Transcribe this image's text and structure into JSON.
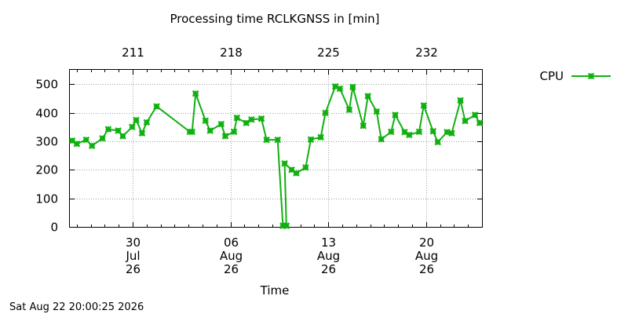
{
  "chart_data": {
    "type": "line",
    "title": "Processing time RCLKGNSS in [min]",
    "xlabel": "Time",
    "ylabel": "",
    "ylim": [
      0,
      550
    ],
    "yticks": [
      0,
      100,
      200,
      300,
      400,
      500
    ],
    "xlim": [
      "2026-07-25T12:00",
      "2026-08-24T00:00"
    ],
    "x_ticks": [
      {
        "x": "2026-07-30",
        "lines": [
          "30",
          "Jul",
          "26"
        ]
      },
      {
        "x": "2026-08-06",
        "lines": [
          "06",
          "Aug",
          "26"
        ]
      },
      {
        "x": "2026-08-13",
        "lines": [
          "13",
          "Aug",
          "26"
        ]
      },
      {
        "x": "2026-08-20",
        "lines": [
          "20",
          "Aug",
          "26"
        ]
      }
    ],
    "x2_ticks": [
      {
        "x": "2026-07-30",
        "label": "211"
      },
      {
        "x": "2026-08-06",
        "label": "218"
      },
      {
        "x": "2026-08-13",
        "label": "225"
      },
      {
        "x": "2026-08-20",
        "label": "232"
      }
    ],
    "grid": true,
    "legend_position": "right",
    "color": "#10b010",
    "series": [
      {
        "name": "CPU",
        "points": [
          [
            "2026-07-25T16:00",
            302
          ],
          [
            "2026-07-26T00:00",
            291
          ],
          [
            "2026-07-26T16:00",
            305
          ],
          [
            "2026-07-27T02:00",
            284
          ],
          [
            "2026-07-27T20:00",
            310
          ],
          [
            "2026-07-28T06:00",
            342
          ],
          [
            "2026-07-28T23:00",
            337
          ],
          [
            "2026-07-29T07:00",
            318
          ],
          [
            "2026-07-29T23:00",
            350
          ],
          [
            "2026-07-30T06:00",
            374
          ],
          [
            "2026-07-30T16:00",
            328
          ],
          [
            "2026-07-31T00:00",
            366
          ],
          [
            "2026-07-31T17:00",
            422
          ],
          [
            "2026-08-03T02:00",
            333
          ],
          [
            "2026-08-03T06:00",
            333
          ],
          [
            "2026-08-03T12:00",
            467
          ],
          [
            "2026-08-04T05:00",
            372
          ],
          [
            "2026-08-04T13:00",
            337
          ],
          [
            "2026-08-05T08:00",
            360
          ],
          [
            "2026-08-05T15:00",
            318
          ],
          [
            "2026-08-06T06:00",
            333
          ],
          [
            "2026-08-06T11:00",
            382
          ],
          [
            "2026-08-07T03:00",
            364
          ],
          [
            "2026-08-07T12:00",
            376
          ],
          [
            "2026-08-08T05:00",
            379
          ],
          [
            "2026-08-08T14:00",
            305
          ],
          [
            "2026-08-09T09:00",
            305
          ],
          [
            "2026-08-09T18:00",
            4
          ],
          [
            "2026-08-10T00:00",
            4
          ],
          [
            "2026-08-09T21:00",
            222
          ],
          [
            "2026-08-10T09:00",
            200
          ],
          [
            "2026-08-10T17:00",
            188
          ],
          [
            "2026-08-11T09:00",
            208
          ],
          [
            "2026-08-11T18:00",
            306
          ],
          [
            "2026-08-12T11:00",
            314
          ],
          [
            "2026-08-12T19:00",
            399
          ],
          [
            "2026-08-13T12:00",
            492
          ],
          [
            "2026-08-13T20:00",
            484
          ],
          [
            "2026-08-14T12:00",
            410
          ],
          [
            "2026-08-14T18:00",
            490
          ],
          [
            "2026-08-15T12:00",
            354
          ],
          [
            "2026-08-15T20:00",
            458
          ],
          [
            "2026-08-16T11:00",
            404
          ],
          [
            "2026-08-16T19:00",
            307
          ],
          [
            "2026-08-17T12:00",
            333
          ],
          [
            "2026-08-17T19:00",
            392
          ],
          [
            "2026-08-18T11:00",
            332
          ],
          [
            "2026-08-18T19:00",
            322
          ],
          [
            "2026-08-19T12:00",
            333
          ],
          [
            "2026-08-19T20:00",
            425
          ],
          [
            "2026-08-20T12:00",
            335
          ],
          [
            "2026-08-20T20:00",
            297
          ],
          [
            "2026-08-21T12:00",
            332
          ],
          [
            "2026-08-21T20:00",
            328
          ],
          [
            "2026-08-22T11:00",
            443
          ],
          [
            "2026-08-22T19:00",
            371
          ],
          [
            "2026-08-23T12:00",
            392
          ],
          [
            "2026-08-23T20:00",
            364
          ]
        ]
      }
    ]
  },
  "footer": {
    "timestamp": "Sat Aug 22 20:00:25 2026"
  }
}
